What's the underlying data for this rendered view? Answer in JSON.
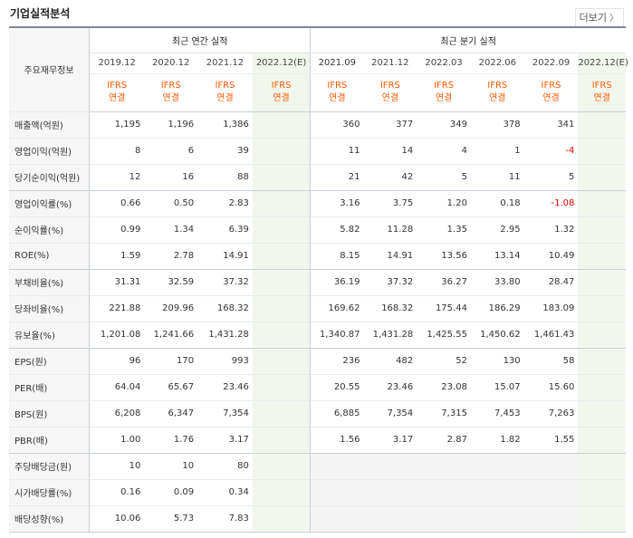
{
  "header": {
    "title": "기업실적분석",
    "more_label": "더보기",
    "more_chevron": "〉"
  },
  "table": {
    "category_header": "주요재무정보",
    "annual_group": "최근 연간 실적",
    "quarter_group": "최근 분기 실적",
    "annual_periods": [
      "2019.12",
      "2020.12",
      "2021.12",
      "2022.12(E)"
    ],
    "quarter_periods": [
      "2021.09",
      "2021.12",
      "2022.03",
      "2022.06",
      "2022.09",
      "2022.12(E)"
    ],
    "ifrs_line1": "IFRS",
    "ifrs_line2": "연결",
    "rows": [
      {
        "label": "매출액(억원)",
        "values": [
          "1,195",
          "1,196",
          "1,386",
          "",
          "360",
          "377",
          "349",
          "378",
          "341",
          ""
        ]
      },
      {
        "label": "영업이익(억원)",
        "values": [
          "8",
          "6",
          "39",
          "",
          "11",
          "14",
          "4",
          "1",
          "-4",
          ""
        ]
      },
      {
        "label": "당기순이익(억원)",
        "values": [
          "12",
          "16",
          "88",
          "",
          "21",
          "42",
          "5",
          "11",
          "5",
          ""
        ]
      },
      {
        "label": "영업이익률(%)",
        "values": [
          "0.66",
          "0.50",
          "2.83",
          "",
          "3.16",
          "3.75",
          "1.20",
          "0.18",
          "-1.08",
          ""
        ]
      },
      {
        "label": "순이익률(%)",
        "values": [
          "0.99",
          "1.34",
          "6.39",
          "",
          "5.82",
          "11.28",
          "1.35",
          "2.95",
          "1.32",
          ""
        ]
      },
      {
        "label": "ROE(%)",
        "values": [
          "1.59",
          "2.78",
          "14.91",
          "",
          "8.15",
          "14.91",
          "13.56",
          "13.14",
          "10.49",
          ""
        ]
      },
      {
        "label": "부채비율(%)",
        "values": [
          "31.31",
          "32.59",
          "37.32",
          "",
          "36.19",
          "37.32",
          "36.27",
          "33.80",
          "28.47",
          ""
        ]
      },
      {
        "label": "당좌비율(%)",
        "values": [
          "221.88",
          "209.96",
          "168.32",
          "",
          "169.62",
          "168.32",
          "175.44",
          "186.29",
          "183.09",
          ""
        ]
      },
      {
        "label": "유보율(%)",
        "values": [
          "1,201.08",
          "1,241.66",
          "1,431.28",
          "",
          "1,340.87",
          "1,431.28",
          "1,425.55",
          "1,450.62",
          "1,461.43",
          ""
        ]
      },
      {
        "label": "EPS(원)",
        "values": [
          "96",
          "170",
          "993",
          "",
          "236",
          "482",
          "52",
          "130",
          "58",
          ""
        ]
      },
      {
        "label": "PER(배)",
        "values": [
          "64.04",
          "65.67",
          "23.46",
          "",
          "20.55",
          "23.46",
          "23.08",
          "15.07",
          "15.60",
          ""
        ]
      },
      {
        "label": "BPS(원)",
        "values": [
          "6,208",
          "6,347",
          "7,354",
          "",
          "6,885",
          "7,354",
          "7,315",
          "7,453",
          "7,263",
          ""
        ]
      },
      {
        "label": "PBR(배)",
        "values": [
          "1.00",
          "1.76",
          "3.17",
          "",
          "1.56",
          "3.17",
          "2.87",
          "1.82",
          "1.55",
          ""
        ]
      },
      {
        "label": "주당배당금(원)",
        "values": [
          "10",
          "10",
          "80",
          "",
          "",
          "",
          "",
          "",
          "",
          ""
        ]
      },
      {
        "label": "시가배당률(%)",
        "values": [
          "0.16",
          "0.09",
          "0.34",
          "",
          "",
          "",
          "",
          "",
          "",
          ""
        ]
      },
      {
        "label": "배당성향(%)",
        "values": [
          "10.06",
          "5.73",
          "7.83",
          "",
          "",
          "",
          "",
          "",
          "",
          ""
        ]
      }
    ]
  },
  "colors": {
    "ifrs_text": "#ff5a00",
    "negative": "#e00000",
    "estimate_bg": "#f2f7ee",
    "label_bg": "#f6f6f6"
  }
}
